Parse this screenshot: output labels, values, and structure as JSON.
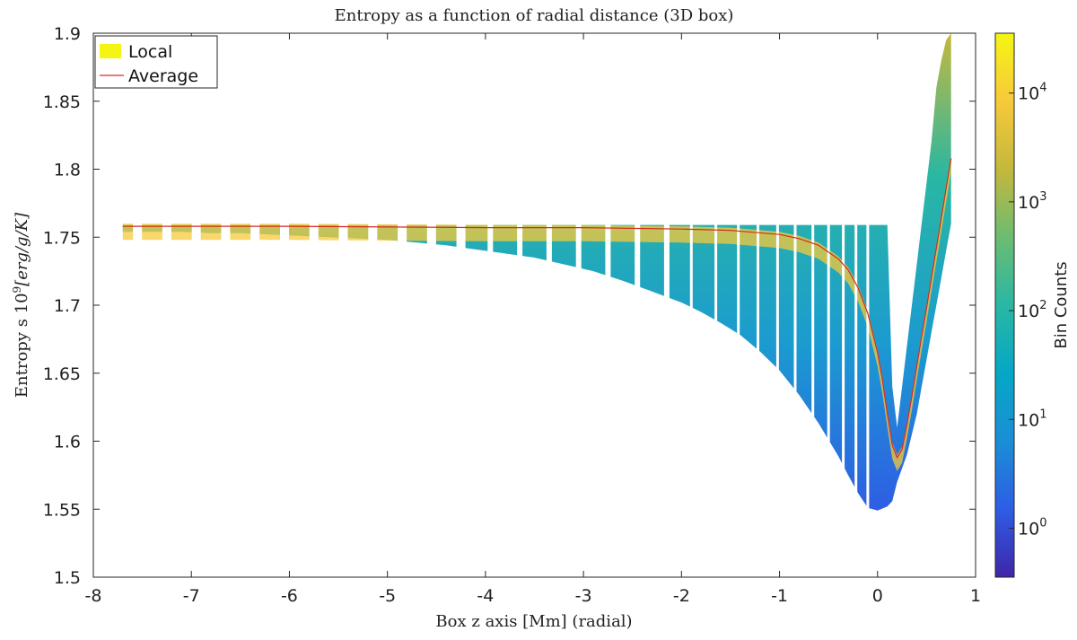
{
  "chart_data": {
    "type": "heatmap",
    "title": "Entropy as a function of radial distance (3D box)",
    "xlabel": "Box z axis [Mm] (radial)",
    "ylabel": "Entropy s 10^9 [erg/g/K]",
    "ylabel_parts": {
      "main": "Entropy s 10",
      "sup": "9",
      "unit": "[erg/g/K]"
    },
    "xlim": [
      -8,
      1
    ],
    "ylim": [
      1.5,
      1.9
    ],
    "xticks": [
      "-8",
      "-7",
      "-6",
      "-5",
      "-4",
      "-3",
      "-2",
      "-1",
      "0",
      "1"
    ],
    "yticks": [
      "1.5",
      "1.55",
      "1.6",
      "1.65",
      "1.7",
      "1.75",
      "1.8",
      "1.85",
      "1.9"
    ],
    "legend": {
      "location": "top-left",
      "entries": [
        {
          "label": "Local",
          "color": "#f5f514",
          "kind": "patch"
        },
        {
          "label": "Average",
          "color": "#d62a1e",
          "kind": "line"
        }
      ]
    },
    "colorbar": {
      "label": "Bin Counts",
      "scale": "log",
      "range_log10": [
        -0.45,
        4.55
      ],
      "ticks": [
        {
          "base": "10",
          "exp": "0"
        },
        {
          "base": "10",
          "exp": "1"
        },
        {
          "base": "10",
          "exp": "2"
        },
        {
          "base": "10",
          "exp": "3"
        },
        {
          "base": "10",
          "exp": "4"
        }
      ],
      "colormap": [
        "#3e26a8",
        "#2e5de5",
        "#1b8ed6",
        "#06a7c6",
        "#2ab7a3",
        "#6cbc72",
        "#c4b83c",
        "#f7c93b",
        "#f5f514"
      ]
    },
    "series": [
      {
        "name": "Average",
        "color": "#d62a1e",
        "x": [
          -7.7,
          -6.0,
          -4.0,
          -3.0,
          -2.0,
          -1.5,
          -1.0,
          -0.8,
          -0.6,
          -0.4,
          -0.3,
          -0.2,
          -0.1,
          0.0,
          0.05,
          0.1,
          0.15,
          0.2,
          0.25,
          0.3,
          0.35,
          0.4,
          0.45,
          0.5,
          0.55,
          0.6,
          0.65,
          0.7,
          0.75
        ],
        "y": [
          1.758,
          1.758,
          1.757,
          1.757,
          1.756,
          1.755,
          1.752,
          1.749,
          1.744,
          1.734,
          1.726,
          1.713,
          1.694,
          1.665,
          1.645,
          1.62,
          1.597,
          1.588,
          1.594,
          1.612,
          1.633,
          1.655,
          1.677,
          1.698,
          1.72,
          1.742,
          1.764,
          1.786,
          1.808
        ]
      }
    ],
    "density_envelope": {
      "x": [
        -7.7,
        -7.4,
        -7.1,
        -6.8,
        -6.5,
        -6.2,
        -5.9,
        -5.6,
        -5.3,
        -5.0,
        -4.7,
        -4.4,
        -4.1,
        -3.8,
        -3.5,
        -3.2,
        -2.9,
        -2.6,
        -2.3,
        -2.0,
        -1.8,
        -1.6,
        -1.4,
        -1.2,
        -1.0,
        -0.8,
        -0.6,
        -0.4,
        -0.3,
        -0.2,
        -0.1,
        0.0,
        0.1,
        0.15,
        0.2,
        0.25,
        0.3,
        0.35,
        0.4,
        0.45,
        0.5,
        0.55,
        0.6,
        0.65,
        0.7,
        0.75
      ],
      "ymin": [
        1.754,
        1.754,
        1.754,
        1.753,
        1.753,
        1.752,
        1.751,
        1.75,
        1.749,
        1.748,
        1.746,
        1.744,
        1.741,
        1.738,
        1.735,
        1.73,
        1.725,
        1.718,
        1.71,
        1.702,
        1.695,
        1.687,
        1.678,
        1.666,
        1.652,
        1.634,
        1.613,
        1.589,
        1.575,
        1.562,
        1.551,
        1.549,
        1.552,
        1.556,
        1.57,
        1.58,
        1.59,
        1.605,
        1.62,
        1.64,
        1.66,
        1.68,
        1.7,
        1.72,
        1.74,
        1.76
      ],
      "ymax": [
        1.759,
        1.759,
        1.759,
        1.759,
        1.759,
        1.759,
        1.759,
        1.759,
        1.759,
        1.759,
        1.759,
        1.759,
        1.759,
        1.759,
        1.759,
        1.759,
        1.759,
        1.759,
        1.759,
        1.759,
        1.759,
        1.759,
        1.759,
        1.759,
        1.759,
        1.759,
        1.759,
        1.759,
        1.759,
        1.759,
        1.759,
        1.759,
        1.759,
        1.64,
        1.61,
        1.64,
        1.67,
        1.7,
        1.73,
        1.76,
        1.79,
        1.82,
        1.86,
        1.88,
        1.895,
        1.9
      ]
    }
  }
}
